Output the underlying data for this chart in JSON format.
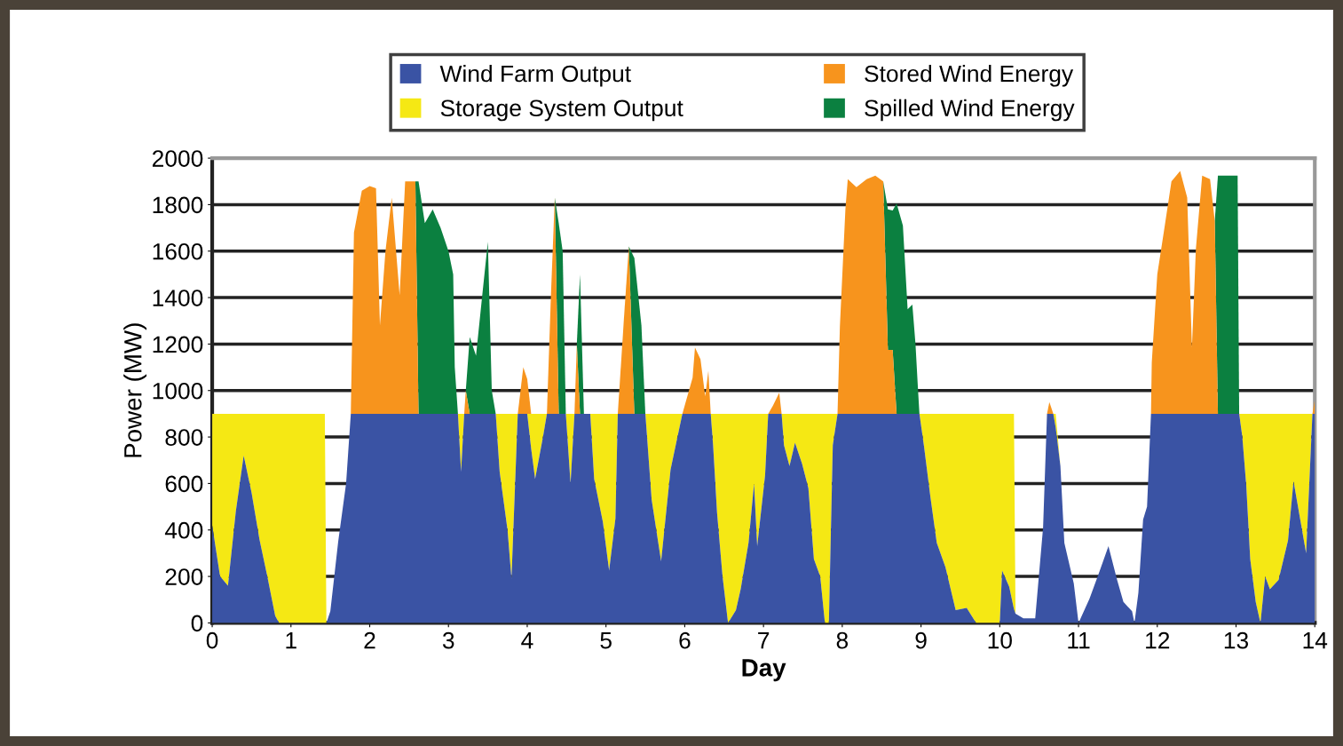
{
  "chart_data": {
    "type": "area",
    "stacked": true,
    "xlabel": "Day",
    "ylabel": "Power (MW)",
    "x": [
      0.0,
      0.1,
      0.2,
      0.3,
      0.4,
      0.5,
      0.6,
      0.7,
      0.8,
      0.85,
      1.43,
      1.45,
      1.5,
      1.6,
      1.7,
      1.76,
      1.8,
      1.9,
      2.0,
      2.08,
      2.13,
      2.2,
      2.28,
      2.38,
      2.45,
      2.58,
      2.62,
      2.7,
      2.8,
      2.9,
      3.0,
      3.06,
      3.08,
      3.12,
      3.16,
      3.2,
      3.22,
      3.27,
      3.35,
      3.42,
      3.5,
      3.55,
      3.6,
      3.65,
      3.75,
      3.8,
      3.88,
      3.95,
      4.0,
      4.05,
      4.1,
      4.2,
      4.25,
      4.3,
      4.35,
      4.4,
      4.45,
      4.49,
      4.55,
      4.6,
      4.63,
      4.67,
      4.72,
      4.8,
      4.85,
      4.96,
      5.04,
      5.12,
      5.15,
      5.23,
      5.29,
      5.36,
      5.45,
      5.5,
      5.58,
      5.7,
      5.82,
      5.97,
      6.1,
      6.13,
      6.2,
      6.26,
      6.3,
      6.33,
      6.36,
      6.41,
      6.48,
      6.55,
      6.65,
      6.71,
      6.81,
      6.88,
      6.92,
      7.02,
      7.06,
      7.12,
      7.2,
      7.23,
      7.26,
      7.33,
      7.4,
      7.49,
      7.57,
      7.64,
      7.72,
      7.78,
      7.83,
      7.88,
      7.94,
      7.97,
      8.04,
      8.07,
      8.18,
      8.31,
      8.42,
      8.52,
      8.58,
      8.64,
      8.69,
      8.77,
      8.83,
      8.89,
      8.93,
      8.96,
      8.98,
      9.04,
      9.12,
      9.2,
      9.31,
      9.44,
      9.58,
      9.7,
      10.0,
      10.03,
      10.12,
      10.18,
      10.2,
      10.3,
      10.45,
      10.55,
      10.6,
      10.63,
      10.68,
      10.71,
      10.77,
      10.82,
      10.94,
      11.0,
      11.14,
      11.27,
      11.38,
      11.49,
      11.57,
      11.68,
      11.71,
      11.76,
      11.82,
      11.87,
      11.92,
      11.93,
      12.0,
      12.1,
      12.18,
      12.29,
      12.38,
      12.44,
      12.49,
      12.57,
      12.67,
      12.73,
      12.77,
      13.02,
      13.04,
      13.08,
      13.13,
      13.18,
      13.25,
      13.31,
      13.37,
      13.43,
      13.54,
      13.66,
      13.73,
      13.82,
      13.89,
      13.97,
      14.0
    ],
    "series": [
      {
        "name": "Wind Farm Output",
        "color": "#3a53a4",
        "values": [
          420,
          200,
          160,
          480,
          720,
          560,
          360,
          200,
          30,
          0,
          0,
          0,
          50,
          350,
          600,
          900,
          900,
          900,
          900,
          900,
          900,
          900,
          900,
          900,
          900,
          900,
          900,
          900,
          900,
          900,
          900,
          900,
          900,
          900,
          650,
          900,
          900,
          900,
          900,
          900,
          900,
          900,
          900,
          650,
          400,
          190,
          900,
          900,
          900,
          750,
          620,
          800,
          900,
          900,
          900,
          900,
          900,
          900,
          600,
          900,
          900,
          900,
          900,
          900,
          620,
          435,
          225,
          450,
          900,
          900,
          900,
          900,
          900,
          900,
          530,
          265,
          660,
          900,
          900,
          900,
          900,
          900,
          900,
          900,
          765,
          475,
          200,
          0,
          55,
          145,
          345,
          600,
          330,
          635,
          900,
          900,
          900,
          900,
          765,
          675,
          775,
          685,
          580,
          275,
          200,
          0,
          0,
          765,
          900,
          900,
          900,
          900,
          900,
          900,
          900,
          900,
          900,
          900,
          900,
          900,
          900,
          900,
          900,
          900,
          900,
          755,
          540,
          345,
          240,
          55,
          65,
          0,
          0,
          225,
          155,
          60,
          40,
          20,
          20,
          410,
          900,
          900,
          900,
          840,
          675,
          345,
          170,
          0,
          105,
          225,
          330,
          185,
          90,
          50,
          0,
          130,
          445,
          500,
          900,
          900,
          900,
          900,
          900,
          900,
          900,
          900,
          900,
          900,
          900,
          900,
          900,
          900,
          900,
          800,
          590,
          275,
          90,
          0,
          200,
          145,
          185,
          355,
          610,
          435,
          300,
          900,
          900
        ]
      },
      {
        "name": "Storage System Output",
        "color": "#f5e814",
        "values": [
          480,
          700,
          740,
          420,
          180,
          340,
          540,
          700,
          870,
          900,
          900,
          0,
          null,
          null,
          null,
          null,
          null,
          null,
          null,
          null,
          null,
          null,
          null,
          null,
          null,
          null,
          null,
          null,
          null,
          null,
          null,
          null,
          null,
          0,
          250,
          0,
          null,
          null,
          null,
          null,
          null,
          null,
          0,
          250,
          500,
          710,
          0,
          null,
          0,
          150,
          280,
          100,
          0,
          null,
          null,
          null,
          null,
          0,
          300,
          0,
          null,
          null,
          null,
          0,
          280,
          465,
          675,
          450,
          0,
          null,
          null,
          null,
          null,
          0,
          370,
          635,
          240,
          0,
          null,
          null,
          null,
          null,
          null,
          0,
          135,
          425,
          700,
          900,
          845,
          755,
          555,
          300,
          570,
          265,
          0,
          null,
          null,
          0,
          135,
          225,
          125,
          215,
          320,
          625,
          700,
          900,
          900,
          135,
          0,
          null,
          null,
          null,
          null,
          null,
          null,
          null,
          null,
          null,
          null,
          null,
          null,
          null,
          null,
          null,
          0,
          145,
          360,
          555,
          660,
          845,
          835,
          900,
          900,
          675,
          745,
          840,
          0,
          null,
          null,
          null,
          null,
          null,
          0,
          60,
          0,
          null,
          null,
          null,
          null,
          null,
          null,
          null,
          null,
          null,
          null,
          null,
          null,
          null,
          null,
          null,
          null,
          null,
          null,
          null,
          null,
          null,
          null,
          null,
          null,
          null,
          null,
          null,
          0,
          100,
          310,
          625,
          810,
          900,
          700,
          755,
          715,
          545,
          290,
          465,
          600,
          0,
          null
        ]
      },
      {
        "name": "Stored Wind Energy",
        "color": "#f7941d",
        "values": [
          null,
          null,
          null,
          null,
          null,
          null,
          null,
          null,
          null,
          null,
          null,
          null,
          null,
          null,
          null,
          0,
          780,
          960,
          980,
          970,
          380,
          700,
          930,
          510,
          1000,
          1000,
          0,
          null,
          null,
          null,
          null,
          null,
          null,
          null,
          null,
          0,
          100,
          0,
          null,
          null,
          null,
          null,
          null,
          null,
          null,
          null,
          0,
          200,
          150,
          0,
          null,
          null,
          0,
          500,
          930,
          0,
          null,
          null,
          null,
          0,
          300,
          0,
          null,
          null,
          null,
          null,
          null,
          null,
          0,
          420,
          720,
          0,
          null,
          null,
          null,
          null,
          null,
          0,
          155,
          285,
          235,
          75,
          185,
          0,
          null,
          null,
          null,
          null,
          null,
          null,
          null,
          null,
          null,
          null,
          0,
          35,
          90,
          0,
          null,
          null,
          null,
          null,
          null,
          null,
          null,
          null,
          null,
          null,
          0,
          375,
          880,
          1010,
          975,
          1010,
          1025,
          1000,
          275,
          275,
          0,
          null,
          null,
          null,
          null,
          null,
          null,
          null,
          null,
          null,
          null,
          null,
          null,
          null,
          null,
          null,
          null,
          null,
          null,
          null,
          null,
          null,
          0,
          50,
          0,
          null,
          null,
          null,
          null,
          null,
          null,
          null,
          null,
          null,
          null,
          null,
          null,
          null,
          null,
          null,
          0,
          220,
          600,
          820,
          1000,
          1045,
          930,
          285,
          710,
          1025,
          1010,
          830,
          0,
          null,
          null,
          null,
          null,
          null,
          null,
          null,
          null,
          null,
          null,
          null,
          null,
          null,
          null,
          0,
          60
        ]
      },
      {
        "name": "Spilled Wind Energy",
        "color": "#0b8040",
        "values": [
          null,
          null,
          null,
          null,
          null,
          null,
          null,
          null,
          null,
          null,
          null,
          null,
          null,
          null,
          null,
          null,
          null,
          null,
          null,
          null,
          null,
          null,
          null,
          null,
          null,
          0,
          1000,
          820,
          880,
          800,
          700,
          600,
          200,
          0,
          null,
          null,
          0,
          330,
          250,
          480,
          740,
          100,
          0,
          null,
          null,
          null,
          null,
          null,
          null,
          null,
          null,
          null,
          null,
          null,
          0,
          820,
          700,
          0,
          null,
          null,
          0,
          600,
          0,
          null,
          null,
          null,
          null,
          null,
          null,
          null,
          0,
          670,
          380,
          0,
          null,
          null,
          null,
          null,
          null,
          null,
          null,
          null,
          null,
          null,
          null,
          null,
          null,
          null,
          null,
          null,
          null,
          null,
          null,
          null,
          null,
          null,
          null,
          null,
          null,
          null,
          null,
          null,
          null,
          null,
          null,
          null,
          null,
          null,
          null,
          null,
          null,
          null,
          null,
          null,
          null,
          0,
          605,
          600,
          905,
          810,
          450,
          470,
          300,
          115,
          0,
          null,
          null,
          null,
          null,
          null,
          null,
          null,
          null,
          null,
          null,
          null,
          null,
          null,
          null,
          null,
          null,
          null,
          null,
          null,
          null,
          null,
          null,
          null,
          null,
          null,
          null,
          null,
          null,
          null,
          null,
          null,
          null,
          null,
          null,
          null,
          null,
          null,
          null,
          null,
          null,
          null,
          null,
          null,
          null,
          0,
          1025,
          1025,
          0,
          null,
          null,
          null,
          null,
          null,
          null,
          null,
          null,
          null,
          null,
          null,
          null,
          null,
          null
        ]
      }
    ],
    "xlim": [
      0,
      14
    ],
    "xticks": [
      0,
      1,
      2,
      3,
      4,
      5,
      6,
      7,
      8,
      9,
      10,
      11,
      12,
      13,
      14
    ],
    "ylim": [
      0,
      2000
    ],
    "yticks": [
      0,
      200,
      400,
      600,
      800,
      1000,
      1200,
      1400,
      1600,
      1800,
      2000
    ],
    "grid": "y",
    "legend": "top"
  }
}
